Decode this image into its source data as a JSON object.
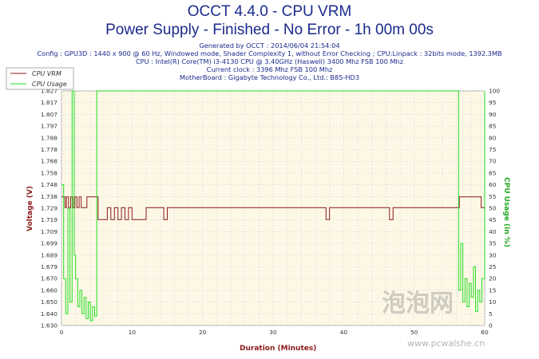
{
  "header": {
    "title": "OCCT 4.4.0 - CPU VRM",
    "subtitle": "Power Supply - Finished - No Error - 1h 00m 00s",
    "info_lines": [
      "Generated by OCCT : 2014/06/04 21:54:04",
      "Config : GPU3D : 1440 x 900 @ 60 Hz, Windowed mode, Shader Complexity 1, without Error Checking ; CPU:Linpack : 32bits mode, 1392.3MB",
      "CPU : Intel(R) Core(TM) i3-4130 CPU @ 3.40GHz (Haswell) 3400 Mhz FSB 100 Mhz",
      "Current clock : 3396 Mhz FSB 100 Mhz",
      "MotherBoard : Gigabyte Technology Co., Ltd.: B85-HD3"
    ]
  },
  "watermark": {
    "text": "泡泡网",
    "url": "www.pcwalshe.cn"
  },
  "chart_data": {
    "type": "line",
    "title": "OCCT 4.4.0 - CPU VRM",
    "xlabel": "Duration (Minutes)",
    "ylabel": "Voltage (V)",
    "y2label": "CPU Usage (in %)",
    "xlim": [
      0,
      60
    ],
    "ylim": [
      1.63,
      1.827
    ],
    "y2lim": [
      0,
      100
    ],
    "x_ticks": [
      0,
      10,
      20,
      30,
      40,
      50,
      60
    ],
    "y_ticks": [
      "1.630",
      "1.640",
      "1.650",
      "1.660",
      "1.670",
      "1.679",
      "1.689",
      "1.699",
      "1.709",
      "1.719",
      "1.729",
      "1.738",
      "1.748",
      "1.758",
      "1.768",
      "1.778",
      "1.788",
      "1.797",
      "1.807",
      "1.817",
      "1.827"
    ],
    "y2_ticks": [
      0,
      5,
      10,
      15,
      20,
      25,
      30,
      35,
      40,
      45,
      50,
      55,
      60,
      65,
      70,
      75,
      80,
      85,
      90,
      95,
      100
    ],
    "grid": true,
    "legend_position": "top-left",
    "series": [
      {
        "name": "CPU VRM",
        "axis": "left",
        "color": "#8b1a1a",
        "x": [
          0,
          0.5,
          0.7,
          1.0,
          1.3,
          1.6,
          1.9,
          2.2,
          2.5,
          2.8,
          3.2,
          3.6,
          4.0,
          4.4,
          4.8,
          5.0,
          5.2,
          5.6,
          6.0,
          6.5,
          7.0,
          7.5,
          8.0,
          8.5,
          9.0,
          9.5,
          10.0,
          10.5,
          11.0,
          11.5,
          12.0,
          12.5,
          13.0,
          13.5,
          14.0,
          14.5,
          15.0,
          16.0,
          17.0,
          18.0,
          18.5,
          19.0,
          20.0,
          22.0,
          25.0,
          30.0,
          35.0,
          37.0,
          37.5,
          38.0,
          39.0,
          40.0,
          41.0,
          42.0,
          43.0,
          44.0,
          45.0,
          46.0,
          46.5,
          47.0,
          48.0,
          50.0,
          55.0,
          56.0,
          56.4,
          57.0,
          58.0,
          59.0,
          59.5,
          60.0
        ],
        "y": [
          1.738,
          1.729,
          1.738,
          1.729,
          1.738,
          1.729,
          1.738,
          1.729,
          1.738,
          1.729,
          1.729,
          1.738,
          1.738,
          1.738,
          1.738,
          1.738,
          1.719,
          1.719,
          1.719,
          1.729,
          1.719,
          1.729,
          1.719,
          1.729,
          1.719,
          1.729,
          1.719,
          1.719,
          1.719,
          1.719,
          1.729,
          1.729,
          1.729,
          1.729,
          1.729,
          1.719,
          1.729,
          1.729,
          1.729,
          1.729,
          1.729,
          1.729,
          1.729,
          1.729,
          1.729,
          1.729,
          1.729,
          1.729,
          1.719,
          1.729,
          1.729,
          1.729,
          1.729,
          1.729,
          1.729,
          1.729,
          1.729,
          1.729,
          1.719,
          1.729,
          1.729,
          1.729,
          1.729,
          1.729,
          1.738,
          1.738,
          1.738,
          1.738,
          1.729,
          1.738
        ]
      },
      {
        "name": "CPU Usage",
        "axis": "right",
        "color": "#22dd22",
        "x": [
          0,
          0.3,
          0.6,
          0.9,
          1.2,
          1.5,
          1.8,
          2.0,
          2.3,
          2.6,
          2.9,
          3.2,
          3.5,
          3.8,
          4.1,
          4.4,
          4.7,
          5.0,
          5.5,
          6.0,
          7.0,
          8.0,
          9.0,
          10.0,
          11.0,
          12.0,
          13.0,
          14.0,
          15.0,
          16.0,
          17.0,
          18.0,
          19.0,
          20.0,
          22.0,
          25.0,
          30.0,
          35.0,
          40.0,
          45.0,
          50.0,
          55.0,
          56.0,
          56.3,
          56.6,
          56.9,
          57.2,
          57.5,
          57.8,
          58.1,
          58.4,
          58.7,
          59.0,
          59.3,
          59.6,
          60.0
        ],
        "y": [
          60,
          20,
          5,
          50,
          10,
          100,
          30,
          20,
          8,
          15,
          5,
          12,
          3,
          10,
          2,
          8,
          4,
          100,
          100,
          100,
          100,
          100,
          100,
          100,
          100,
          100,
          100,
          100,
          100,
          100,
          100,
          100,
          100,
          100,
          100,
          100,
          100,
          100,
          100,
          100,
          100,
          100,
          100,
          15,
          35,
          10,
          20,
          8,
          18,
          12,
          25,
          6,
          15,
          10,
          20,
          100
        ]
      }
    ]
  }
}
